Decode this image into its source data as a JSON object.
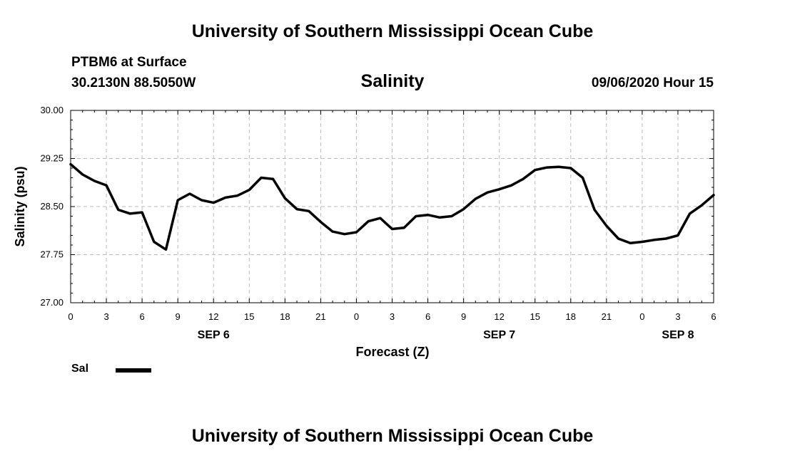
{
  "header": {
    "title": "University of Southern Mississippi Ocean Cube",
    "station": "PTBM6 at Surface",
    "coords": "30.2130N 88.5050W",
    "chart_title": "Salinity",
    "datetime": "09/06/2020 Hour 15",
    "footer_title": "University of Southern Mississippi Ocean Cube"
  },
  "legend": {
    "label": "Sal",
    "color": "#000000"
  },
  "chart_data": {
    "type": "line",
    "title": "Salinity",
    "xlabel": "Forecast (Z)",
    "ylabel": "Salinity (psu)",
    "xlim": [
      0,
      54
    ],
    "ylim": [
      27.0,
      30.0
    ],
    "yticks": [
      "30.00",
      "29.25",
      "28.50",
      "27.75",
      "27.00"
    ],
    "ytick_values": [
      30.0,
      29.25,
      28.5,
      27.75,
      27.0
    ],
    "xticks": [
      {
        "x": 0,
        "label": "0"
      },
      {
        "x": 3,
        "label": "3"
      },
      {
        "x": 6,
        "label": "6"
      },
      {
        "x": 9,
        "label": "9"
      },
      {
        "x": 12,
        "label": "12"
      },
      {
        "x": 15,
        "label": "15"
      },
      {
        "x": 18,
        "label": "18"
      },
      {
        "x": 21,
        "label": "21"
      },
      {
        "x": 24,
        "label": "0"
      },
      {
        "x": 27,
        "label": "3"
      },
      {
        "x": 30,
        "label": "6"
      },
      {
        "x": 33,
        "label": "9"
      },
      {
        "x": 36,
        "label": "12"
      },
      {
        "x": 39,
        "label": "15"
      },
      {
        "x": 42,
        "label": "18"
      },
      {
        "x": 45,
        "label": "21"
      },
      {
        "x": 48,
        "label": "0"
      },
      {
        "x": 51,
        "label": "3"
      },
      {
        "x": 54,
        "label": "6"
      }
    ],
    "day_labels": [
      {
        "x": 12,
        "label": "SEP 6"
      },
      {
        "x": 36,
        "label": "SEP 7"
      },
      {
        "x": 51,
        "label": "SEP 8"
      }
    ],
    "series": [
      {
        "name": "Sal",
        "color": "#000000",
        "x": [
          0,
          1,
          2,
          3,
          4,
          5,
          6,
          7,
          8,
          9,
          10,
          11,
          12,
          13,
          14,
          15,
          16,
          17,
          18,
          19,
          20,
          21,
          22,
          23,
          24,
          25,
          26,
          27,
          28,
          29,
          30,
          31,
          32,
          33,
          34,
          35,
          36,
          37,
          38,
          39,
          40,
          41,
          42,
          43,
          44,
          45,
          46,
          47,
          48,
          49,
          50,
          51,
          52,
          53,
          54
        ],
        "values": [
          29.16,
          29.0,
          28.9,
          28.83,
          28.45,
          28.39,
          28.41,
          27.95,
          27.83,
          28.6,
          28.7,
          28.6,
          28.56,
          28.64,
          28.67,
          28.76,
          28.95,
          28.93,
          28.63,
          28.46,
          28.43,
          28.26,
          28.11,
          28.07,
          28.1,
          28.27,
          28.32,
          28.15,
          28.17,
          28.35,
          28.37,
          28.33,
          28.35,
          28.46,
          28.62,
          28.72,
          28.77,
          28.83,
          28.93,
          29.07,
          29.11,
          29.12,
          29.1,
          28.95,
          28.45,
          28.2,
          28.0,
          27.93,
          27.95,
          27.98,
          28.0,
          28.05,
          28.39,
          28.52,
          28.68
        ]
      }
    ]
  }
}
